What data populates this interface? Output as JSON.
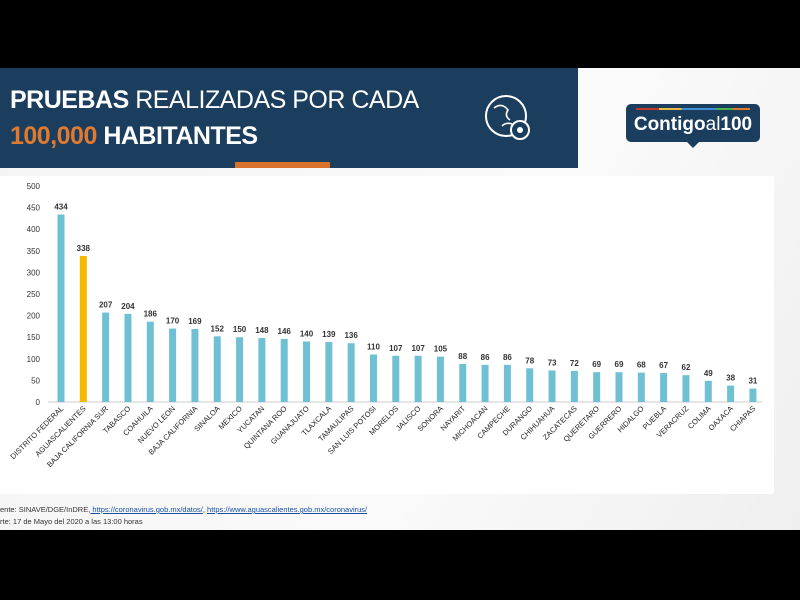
{
  "header": {
    "title_bold": "PRUEBAS",
    "title_rest": " REALIZADAS POR CADA",
    "title_line2_highlight": "100,000",
    "title_line2_rest": " HABITANTES",
    "logo_text_bold": "Contigo",
    "logo_text_al": "al",
    "logo_text_num": "100",
    "icon": "globe-virus-icon"
  },
  "colors": {
    "banner": "#1b3d5e",
    "accent": "#e07a2f",
    "bar": "#6fc0d3",
    "highlight_bar": "#f5b800"
  },
  "chart_data": {
    "type": "bar",
    "title": "PRUEBAS REALIZADAS POR CADA 100,000 HABITANTES",
    "categories": [
      "DISTRITO FEDERAL",
      "AGUASCALIENTES",
      "BAJA CALIFORNIA SUR",
      "TABASCO",
      "COAHUILA",
      "NUEVO LEON",
      "BAJA CALIFORNIA",
      "SINALOA",
      "MEXICO",
      "YUCATAN",
      "QUINTANA ROO",
      "GUANAJUATO",
      "TLAXCALA",
      "TAMAULIPAS",
      "SAN LUIS POTOSI",
      "MORELOS",
      "JALISCO",
      "SONORA",
      "NAYARIT",
      "MICHOACAN",
      "CAMPECHE",
      "DURANGO",
      "CHIHUAHUA",
      "ZACATECAS",
      "QUERETARO",
      "GUERRERO",
      "HIDALGO",
      "PUEBLA",
      "VERACRUZ",
      "COLIMA",
      "OAXACA",
      "CHIAPAS"
    ],
    "values": [
      434,
      338,
      207,
      204,
      186,
      170,
      169,
      152,
      150,
      148,
      146,
      140,
      139,
      136,
      110,
      107,
      107,
      105,
      88,
      86,
      86,
      78,
      73,
      72,
      69,
      69,
      68,
      67,
      62,
      49,
      38,
      31
    ],
    "highlight": "AGUASCALIENTES",
    "ylim": [
      0,
      500
    ],
    "yticks": [
      0,
      50,
      100,
      150,
      200,
      250,
      300,
      350,
      400,
      450,
      500
    ],
    "grid": false,
    "xlabel": "",
    "ylabel": ""
  },
  "footer": {
    "source_prefix": "ente: SINAVE/DGE/InDRE,",
    "link1": " https://coronavirus.gob.mx/datos/",
    "sep": ", ",
    "link2": "https://www.aguascalientes.gob.mx/coronavirus/",
    "cutoff": "rte: 17 de Mayo del 2020 a las 13:00 horas"
  }
}
